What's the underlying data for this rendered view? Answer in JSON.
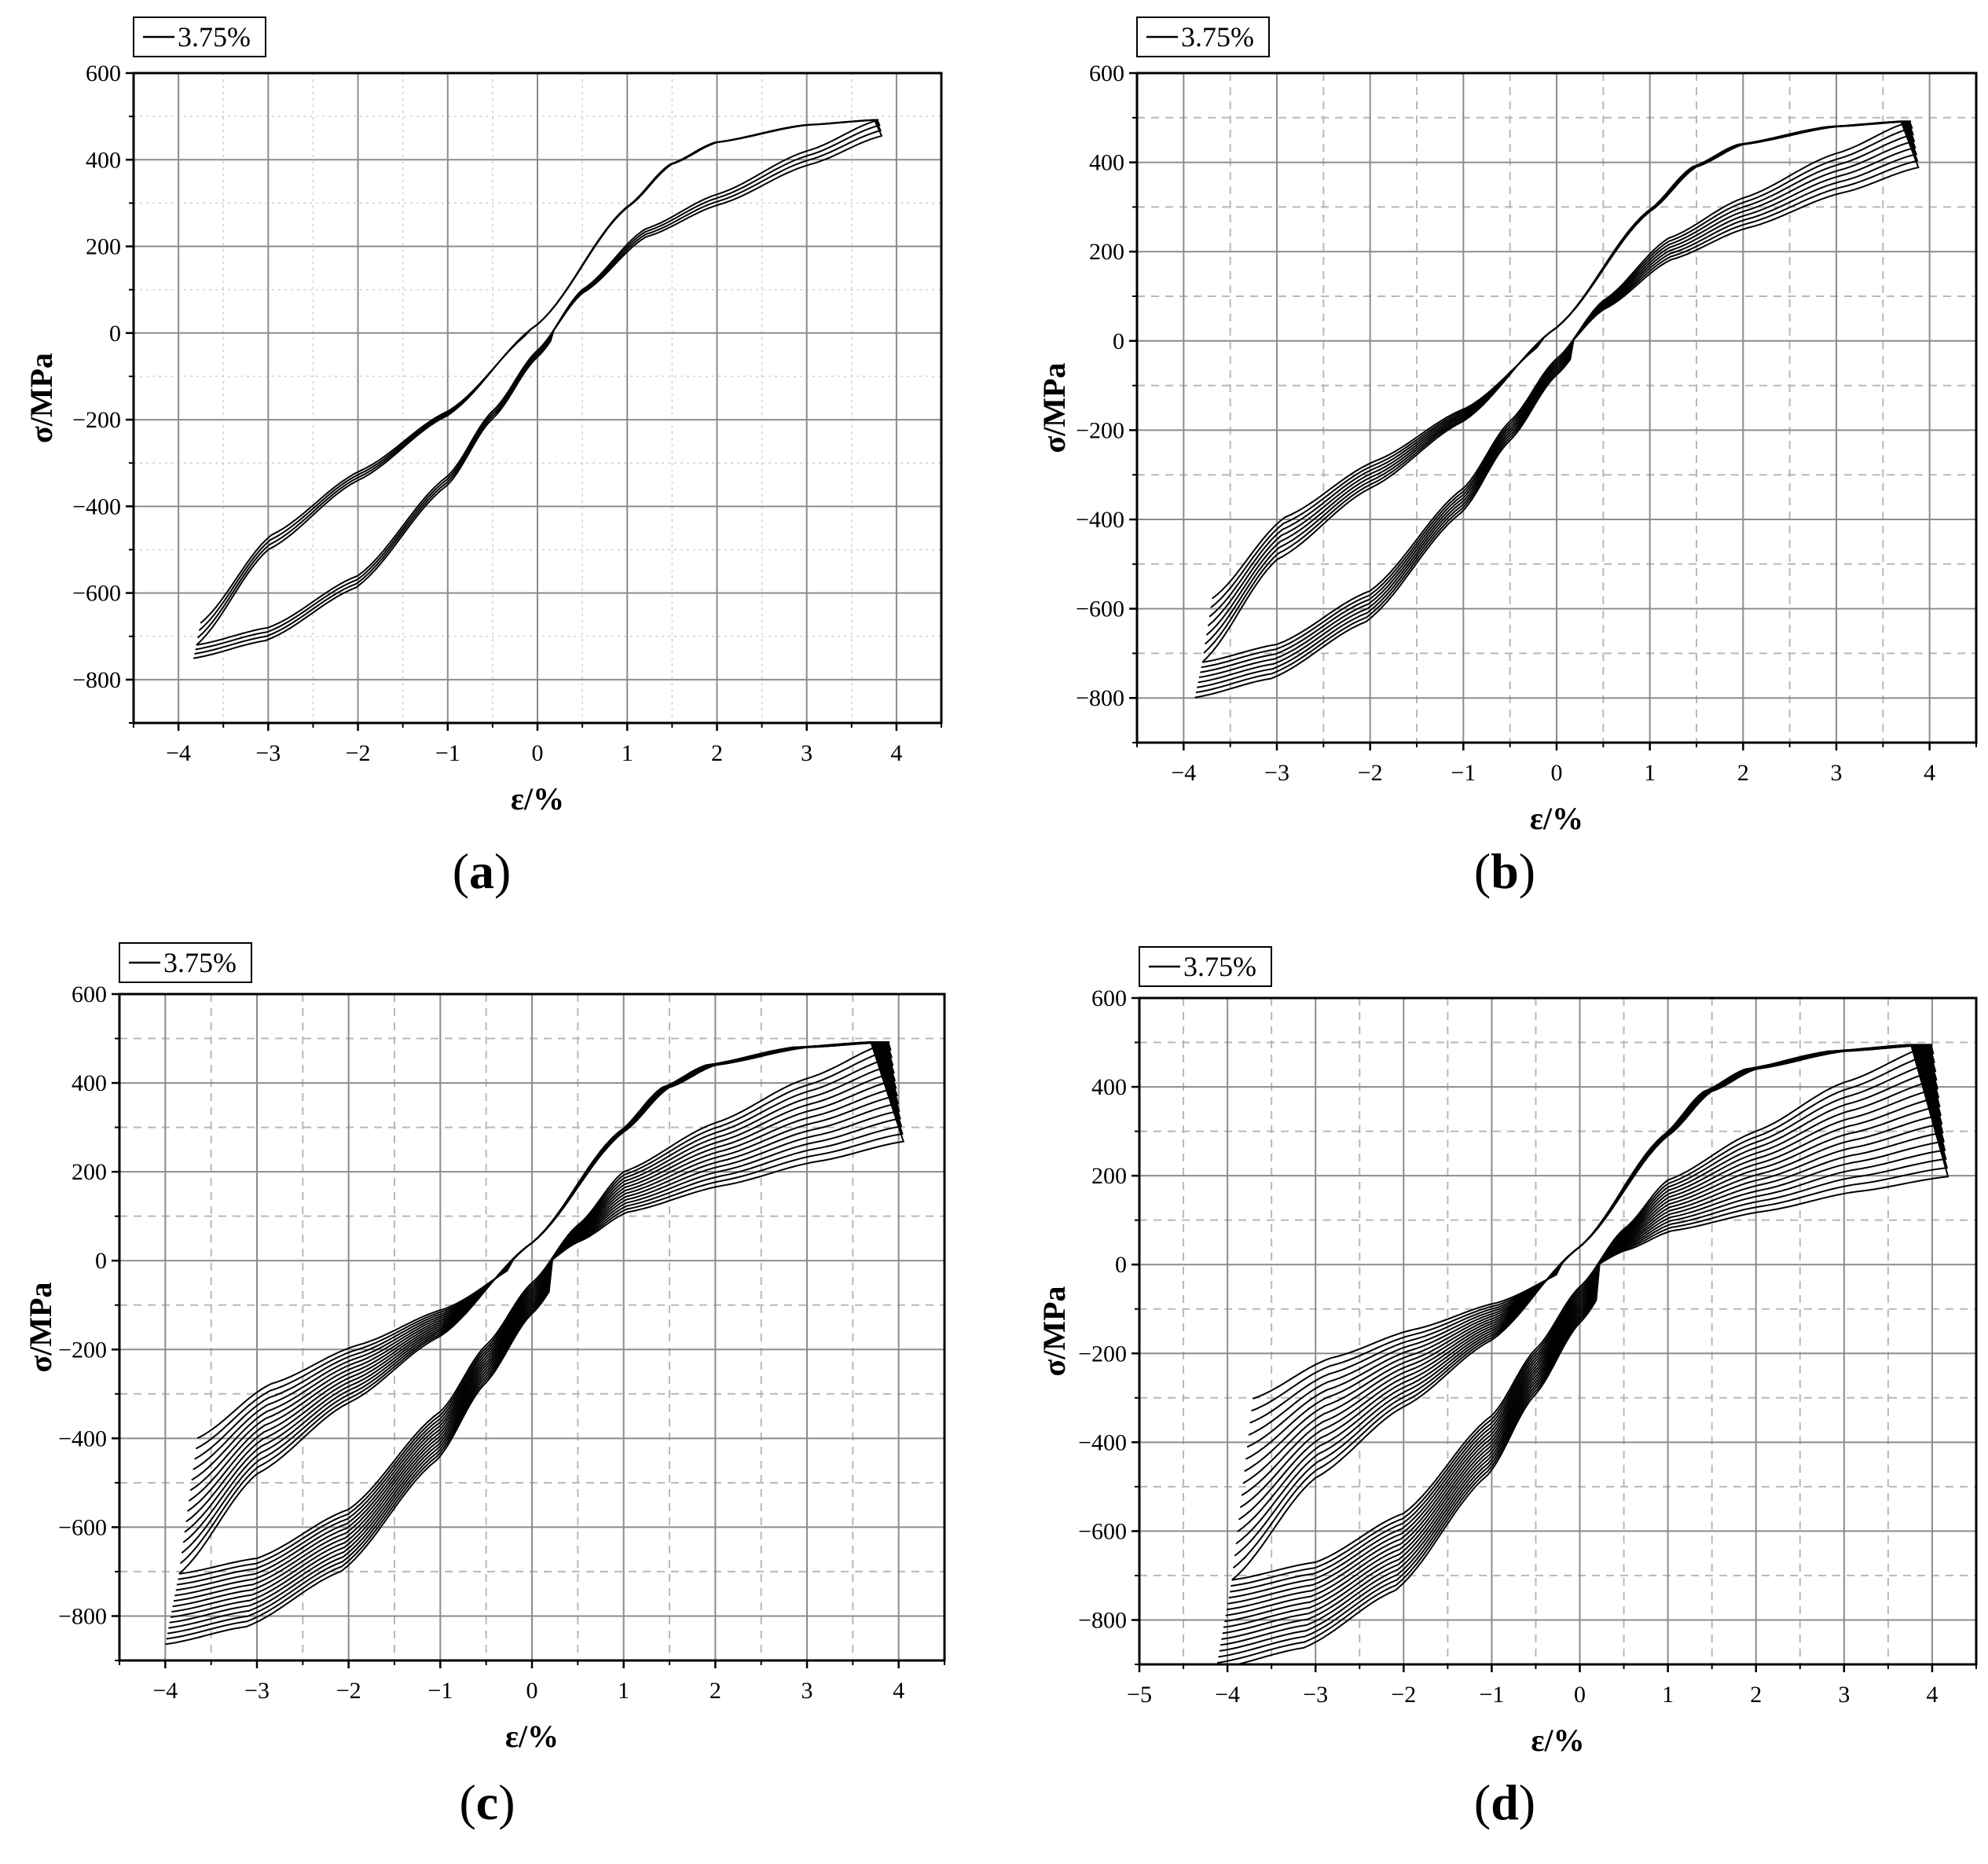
{
  "chart_data": [
    {
      "id": "a",
      "type": "line",
      "panel_label": "(a)",
      "panel_letter": "a",
      "xlabel": "ε/%",
      "ylabel": "σ/MPa",
      "legend": "3.75%",
      "legend_position": "top-left",
      "xlim": [
        -4.5,
        4.5
      ],
      "ylim": [
        -900,
        600
      ],
      "xticks": [
        -4,
        -3,
        -2,
        -1,
        0,
        1,
        2,
        3,
        4
      ],
      "xtick_labels": [
        "−4",
        "−3",
        "−2",
        "−1",
        "0",
        "1",
        "2",
        "3",
        "4"
      ],
      "yticks": [
        600,
        400,
        200,
        0,
        -200,
        -400,
        -600,
        -800
      ],
      "ytick_labels": [
        "600",
        "400",
        "200",
        "0",
        "−200",
        "−400",
        "−600",
        "−800"
      ],
      "grid": "solid-major",
      "series": [
        {
          "name": "3.75%",
          "loading_x": [
            -3.8,
            -3.0,
            -2.0,
            -1.0,
            0.0,
            1.0,
            1.5,
            2.0,
            3.0,
            3.8
          ],
          "loading_y": [
            -720,
            -500,
            -340,
            -190,
            20,
            290,
            390,
            440,
            480,
            492
          ],
          "unloading_x": [
            3.8,
            3.0,
            2.0,
            1.2,
            0.5,
            0.0,
            -0.5,
            -1.0,
            -2.0,
            -3.0,
            -3.8
          ],
          "unloading_y": [
            492,
            420,
            320,
            240,
            100,
            -40,
            -180,
            -330,
            -560,
            -680,
            -720
          ],
          "cycles": 4,
          "spread": 0.025
        }
      ]
    },
    {
      "id": "b",
      "type": "line",
      "panel_label": "(b)",
      "panel_letter": "b",
      "xlabel": "ε/%",
      "ylabel": "σ/MPa",
      "legend": "3.75%",
      "legend_position": "top-left",
      "xlim": [
        -4.5,
        4.5
      ],
      "ylim": [
        -900,
        600
      ],
      "xticks": [
        -4,
        -3,
        -2,
        -1,
        0,
        1,
        2,
        3,
        4
      ],
      "xtick_labels": [
        "−4",
        "−3",
        "−2",
        "−1",
        "0",
        "1",
        "2",
        "3",
        "4"
      ],
      "yticks": [
        600,
        400,
        200,
        0,
        -200,
        -400,
        -600,
        -800
      ],
      "ytick_labels": [
        "600",
        "400",
        "200",
        "0",
        "−200",
        "−400",
        "−600",
        "−800"
      ],
      "grid": "solid-major-dashed-minor",
      "series": [
        {
          "name": "3.75%",
          "loading_x": [
            -3.8,
            -3.0,
            -2.0,
            -1.0,
            0.0,
            1.0,
            1.5,
            2.0,
            3.0,
            3.8
          ],
          "loading_y": [
            -720,
            -490,
            -330,
            -180,
            30,
            290,
            390,
            440,
            480,
            492
          ],
          "unloading_x": [
            3.8,
            3.0,
            2.0,
            1.2,
            0.5,
            0.0,
            -0.5,
            -1.0,
            -2.0,
            -3.0,
            -3.8
          ],
          "unloading_y": [
            492,
            420,
            320,
            230,
            90,
            -40,
            -180,
            -330,
            -560,
            -680,
            -720
          ],
          "cycles": 8,
          "spread": 0.03
        }
      ]
    },
    {
      "id": "c",
      "type": "line",
      "panel_label": "(c)",
      "panel_letter": "c",
      "xlabel": "ε/%",
      "ylabel": "σ/MPa",
      "legend": "3.75%",
      "legend_position": "top-left",
      "xlim": [
        -4.5,
        4.5
      ],
      "ylim": [
        -900,
        600
      ],
      "xticks": [
        -4,
        -3,
        -2,
        -1,
        0,
        1,
        2,
        3,
        4
      ],
      "xtick_labels": [
        "−4",
        "−3",
        "−2",
        "−1",
        "0",
        "1",
        "2",
        "3",
        "4"
      ],
      "yticks": [
        600,
        400,
        200,
        0,
        -200,
        -400,
        -600,
        -800
      ],
      "ytick_labels": [
        "600",
        "400",
        "200",
        "0",
        "−200",
        "−400",
        "−600",
        "−800"
      ],
      "grid": "solid-major-dashed-minor",
      "series": [
        {
          "name": "3.75%",
          "loading_x": [
            -3.85,
            -3.0,
            -2.0,
            -1.0,
            0.0,
            1.0,
            1.5,
            2.0,
            3.0,
            3.9
          ],
          "loading_y": [
            -705,
            -480,
            -320,
            -170,
            40,
            290,
            390,
            440,
            480,
            492
          ],
          "unloading_x": [
            3.9,
            3.0,
            2.0,
            1.0,
            0.5,
            0.0,
            -0.5,
            -1.0,
            -2.0,
            -3.0,
            -3.85
          ],
          "unloading_y": [
            492,
            410,
            310,
            200,
            80,
            -50,
            -190,
            -340,
            -560,
            -670,
            -705
          ],
          "cycles": 14,
          "spread": 0.035
        }
      ]
    },
    {
      "id": "d",
      "type": "line",
      "panel_label": "(d)",
      "panel_letter": "d",
      "xlabel": "ε/%",
      "ylabel": "σ/MPa",
      "legend": "3.75%",
      "legend_position": "top-left",
      "xlim": [
        -5,
        4.5
      ],
      "ylim": [
        -900,
        600
      ],
      "xticks": [
        -5,
        -4,
        -3,
        -2,
        -1,
        0,
        1,
        2,
        3,
        4
      ],
      "xtick_labels": [
        "−5",
        "−4",
        "−3",
        "−2",
        "−1",
        "0",
        "1",
        "2",
        "3",
        "4"
      ],
      "yticks": [
        600,
        400,
        200,
        0,
        -200,
        -400,
        -600,
        -800
      ],
      "ytick_labels": [
        "600",
        "400",
        "200",
        "0",
        "−200",
        "−400",
        "−600",
        "−800"
      ],
      "grid": "solid-major-dashed-minor",
      "series": [
        {
          "name": "3.75%",
          "loading_x": [
            -3.95,
            -3.0,
            -2.0,
            -1.0,
            0.0,
            1.0,
            1.5,
            2.0,
            3.0,
            4.0
          ],
          "loading_y": [
            -710,
            -480,
            -320,
            -170,
            40,
            290,
            390,
            440,
            480,
            495
          ],
          "unloading_x": [
            4.0,
            3.0,
            2.0,
            1.0,
            0.5,
            0.0,
            -0.5,
            -1.0,
            -2.0,
            -3.0,
            -3.95
          ],
          "unloading_y": [
            495,
            410,
            300,
            190,
            80,
            -50,
            -190,
            -340,
            -560,
            -670,
            -710
          ],
          "cycles": 16,
          "spread": 0.04
        }
      ]
    }
  ]
}
